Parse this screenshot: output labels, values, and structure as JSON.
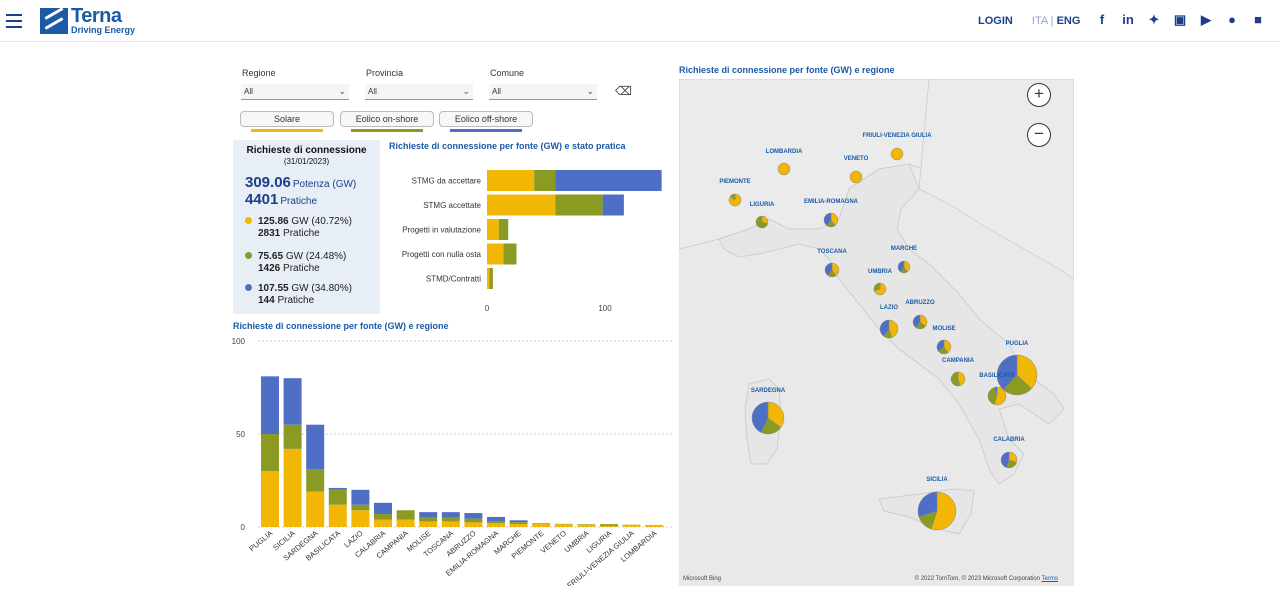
{
  "header": {
    "logo_name": "Terna",
    "logo_tagline": "Driving Energy",
    "login": "LOGIN",
    "lang_ita": "ITA",
    "lang_sep": " | ",
    "lang_eng": "ENG",
    "social_icons": [
      "facebook-icon",
      "linkedin-icon",
      "twitter-icon",
      "instagram-icon",
      "youtube-icon",
      "flickr-icon",
      "app-icon"
    ]
  },
  "filters": {
    "regione": {
      "label": "Regione",
      "value": "All"
    },
    "provincia": {
      "label": "Provincia",
      "value": "All"
    },
    "comune": {
      "label": "Comune",
      "value": "All"
    }
  },
  "source_buttons": [
    {
      "label": "Solare",
      "color": "#f2b705"
    },
    {
      "label": "Eolico on-shore",
      "color": "#8a9a23"
    },
    {
      "label": "Eolico off-shore",
      "color": "#4f6fc7"
    }
  ],
  "kpi": {
    "title": "Richieste di connessione",
    "date": "(31/01/2023)",
    "total_gw": "309.06",
    "total_gw_label": "Potenza (GW)",
    "total_pratiche": "4401",
    "total_pratiche_label": "Pratiche",
    "solare": {
      "gw": "125.86",
      "pct": "GW (40.72%)",
      "pratiche": "2831",
      "pratiche_label": "Pratiche"
    },
    "onshore": {
      "gw": "75.65",
      "pct": "GW (24.48%)",
      "pratiche": "1426",
      "pratiche_label": "Pratiche"
    },
    "offshore": {
      "gw": "107.55",
      "pct": "GW (34.80%)",
      "pratiche": "144",
      "pratiche_label": "Pratiche"
    }
  },
  "colors": {
    "solare": "#f2b705",
    "onshore": "#8a9a23",
    "offshore": "#4f6fc7",
    "title": "#1b5aa6"
  },
  "chart_data": [
    {
      "type": "bar",
      "orientation": "horizontal",
      "stacked": true,
      "title": "Richieste di connessione per fonte (GW) e stato pratica",
      "categories": [
        "STMG da accettare",
        "STMG accettate",
        "Progetti in valutazione",
        "Progetti con nulla osta",
        "STMD/Contratti"
      ],
      "series": [
        {
          "name": "Solare",
          "values": [
            40,
            58,
            10,
            14,
            2
          ]
        },
        {
          "name": "Eolico on-shore",
          "values": [
            18,
            40,
            8,
            11,
            3
          ]
        },
        {
          "name": "Eolico off-shore",
          "values": [
            90,
            18,
            0,
            0,
            0
          ]
        }
      ],
      "xticks": [
        0,
        100
      ],
      "xlim": [
        0,
        150
      ]
    },
    {
      "type": "bar",
      "stacked": true,
      "title": "Richieste di connessione per fonte (GW) e regione",
      "categories": [
        "PUGLIA",
        "SICILIA",
        "SARDEGNA",
        "BASILICATA",
        "LAZIO",
        "CALABRIA",
        "CAMPANIA",
        "MOLISE",
        "TOSCANA",
        "ABRUZZO",
        "EMILIA-ROMAGNA",
        "MARCHE",
        "PIEMONTE",
        "VENETO",
        "UMBRIA",
        "LIGURIA",
        "FRIULI-VENEZIA GIULIA",
        "LOMBARDIA"
      ],
      "series": [
        {
          "name": "Solare",
          "values": [
            30,
            42,
            19,
            12,
            9,
            4,
            4,
            3,
            3,
            2.5,
            2,
            1.6,
            1.6,
            1.5,
            1.2,
            0.5,
            1.2,
            1.0
          ]
        },
        {
          "name": "Eolico on-shore",
          "values": [
            20,
            13,
            12,
            8,
            3,
            3,
            5,
            2,
            2,
            2,
            1,
            1,
            0.4,
            0.2,
            0.3,
            1.0,
            0.1,
            0.1
          ]
        },
        {
          "name": "Eolico off-shore",
          "values": [
            31,
            25,
            24,
            1,
            8,
            6,
            0,
            3,
            3,
            3,
            2.4,
            1,
            0,
            0,
            0,
            0,
            0,
            0
          ]
        }
      ],
      "yticks": [
        0,
        50,
        100
      ],
      "ylim": [
        0,
        100
      ],
      "grid": true
    },
    {
      "type": "map-pie",
      "title": "Richieste di connessione per fonte (GW) e regione",
      "regions": [
        {
          "name": "FRIULI-VENEZIA GIULIA",
          "shares": [
            1,
            0,
            0
          ]
        },
        {
          "name": "LOMBARDIA",
          "shares": [
            1,
            0,
            0
          ]
        },
        {
          "name": "VENETO",
          "shares": [
            1,
            0,
            0
          ]
        },
        {
          "name": "PIEMONTE",
          "shares": [
            0.85,
            0.15,
            0
          ]
        },
        {
          "name": "LIGURIA",
          "shares": [
            0.3,
            0.7,
            0
          ]
        },
        {
          "name": "EMILIA-ROMAGNA",
          "shares": [
            0.4,
            0.2,
            0.4
          ]
        },
        {
          "name": "MARCHE",
          "shares": [
            0.4,
            0.2,
            0.4
          ]
        },
        {
          "name": "TOSCANA",
          "shares": [
            0.4,
            0.2,
            0.4
          ]
        },
        {
          "name": "UMBRIA",
          "shares": [
            0.7,
            0.3,
            0
          ]
        },
        {
          "name": "ABRUZZO",
          "shares": [
            0.35,
            0.25,
            0.4
          ]
        },
        {
          "name": "LAZIO",
          "shares": [
            0.45,
            0.15,
            0.4
          ]
        },
        {
          "name": "MOLISE",
          "shares": [
            0.4,
            0.25,
            0.35
          ]
        },
        {
          "name": "CAMPANIA",
          "shares": [
            0.45,
            0.55,
            0
          ]
        },
        {
          "name": "PUGLIA",
          "shares": [
            0.37,
            0.25,
            0.38
          ]
        },
        {
          "name": "BASILICATA",
          "shares": [
            0.55,
            0.4,
            0.05
          ]
        },
        {
          "name": "SARDEGNA",
          "shares": [
            0.35,
            0.22,
            0.43
          ]
        },
        {
          "name": "CALABRIA",
          "shares": [
            0.3,
            0.25,
            0.45
          ]
        },
        {
          "name": "SICILIA",
          "shares": [
            0.55,
            0.15,
            0.3
          ]
        }
      ]
    }
  ],
  "map": {
    "credit": "© 2022 TomTom, © 2023 Microsoft Corporation",
    "terms": "Terms",
    "bing": "Microsoft Bing"
  }
}
